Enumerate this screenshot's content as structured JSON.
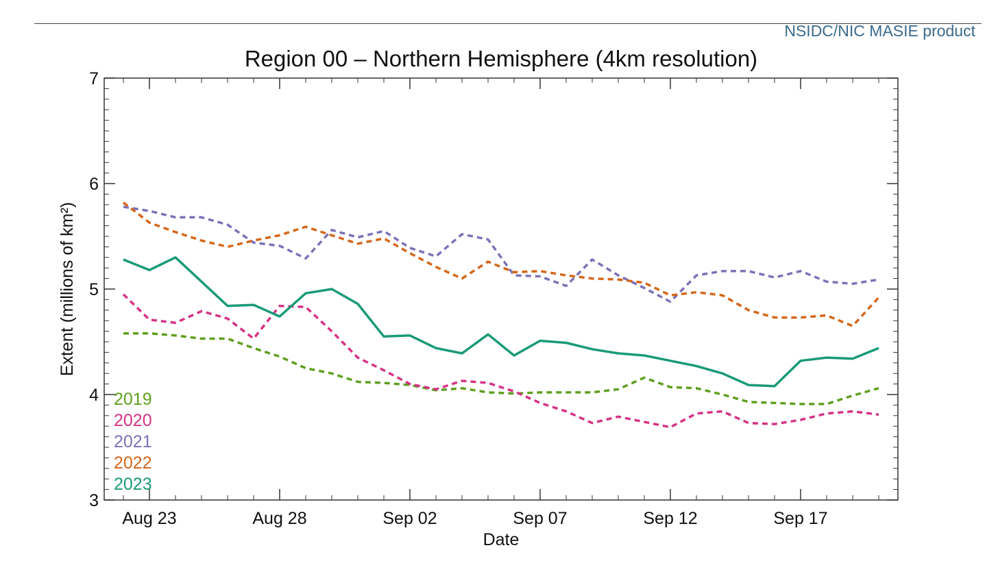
{
  "header": {
    "credit": "NSIDC/NIC MASIE product"
  },
  "chart_data": {
    "type": "line",
    "title": "Region 00 – Northern Hemisphere (4km resolution)",
    "xlabel": "Date",
    "ylabel": "Extent (millions of km²)",
    "ylim": [
      3,
      7
    ],
    "yticks": [
      "3",
      "4",
      "5",
      "6",
      "7"
    ],
    "x_ticks": [
      {
        "label": "Aug 23",
        "index": 1
      },
      {
        "label": "Aug 28",
        "index": 6
      },
      {
        "label": "Sep 02",
        "index": 11
      },
      {
        "label": "Sep 07",
        "index": 16
      },
      {
        "label": "Sep 12",
        "index": 21
      },
      {
        "label": "Sep 17",
        "index": 26
      }
    ],
    "x": [
      "Aug 22",
      "Aug 23",
      "Aug 24",
      "Aug 25",
      "Aug 26",
      "Aug 27",
      "Aug 28",
      "Aug 29",
      "Aug 30",
      "Aug 31",
      "Sep 01",
      "Sep 02",
      "Sep 03",
      "Sep 04",
      "Sep 05",
      "Sep 06",
      "Sep 07",
      "Sep 08",
      "Sep 09",
      "Sep 10",
      "Sep 11",
      "Sep 12",
      "Sep 13",
      "Sep 14",
      "Sep 15",
      "Sep 16",
      "Sep 17",
      "Sep 18",
      "Sep 19",
      "Sep 20"
    ],
    "grid": false,
    "legend_position": "bottom-left",
    "series": [
      {
        "name": "2019",
        "color": "#5f9f1f",
        "dash": true,
        "values": [
          4.58,
          4.58,
          4.56,
          4.53,
          4.53,
          4.44,
          4.36,
          4.25,
          4.2,
          4.12,
          4.11,
          4.09,
          4.04,
          4.06,
          4.02,
          4.01,
          4.02,
          4.02,
          4.02,
          4.05,
          4.16,
          4.07,
          4.06,
          4.0,
          3.93,
          3.92,
          3.91,
          3.91,
          3.99,
          4.06
        ]
      },
      {
        "name": "2020",
        "color": "#d63384",
        "dash": true,
        "values": [
          4.95,
          4.71,
          4.68,
          4.79,
          4.72,
          4.53,
          4.84,
          4.83,
          4.6,
          4.35,
          4.23,
          4.1,
          4.05,
          4.13,
          4.11,
          4.03,
          3.92,
          3.84,
          3.73,
          3.79,
          3.74,
          3.69,
          3.82,
          3.84,
          3.73,
          3.72,
          3.76,
          3.82,
          3.84,
          3.81
        ]
      },
      {
        "name": "2021",
        "color": "#7b72b8",
        "dash": true,
        "values": [
          5.78,
          5.74,
          5.68,
          5.68,
          5.61,
          5.44,
          5.41,
          5.29,
          5.56,
          5.49,
          5.55,
          5.39,
          5.31,
          5.52,
          5.47,
          5.13,
          5.12,
          5.03,
          5.28,
          5.13,
          5.01,
          4.88,
          5.13,
          5.17,
          5.17,
          5.11,
          5.17,
          5.07,
          5.05,
          5.09
        ]
      },
      {
        "name": "2022",
        "color": "#d4671a",
        "dash": true,
        "values": [
          5.82,
          5.63,
          5.54,
          5.46,
          5.4,
          5.46,
          5.51,
          5.59,
          5.51,
          5.43,
          5.48,
          5.34,
          5.21,
          5.1,
          5.26,
          5.16,
          5.17,
          5.13,
          5.1,
          5.09,
          5.06,
          4.94,
          4.97,
          4.94,
          4.8,
          4.73,
          4.73,
          4.75,
          4.65,
          4.92
        ]
      },
      {
        "name": "2023",
        "color": "#1a9a78",
        "dash": false,
        "values": [
          5.28,
          5.18,
          5.3,
          5.07,
          4.84,
          4.85,
          4.74,
          4.96,
          5.0,
          4.86,
          4.55,
          4.56,
          4.44,
          4.39,
          4.57,
          4.37,
          4.51,
          4.49,
          4.43,
          4.39,
          4.37,
          4.32,
          4.27,
          4.2,
          4.09,
          4.08,
          4.32,
          4.35,
          4.34,
          4.44
        ]
      }
    ]
  }
}
